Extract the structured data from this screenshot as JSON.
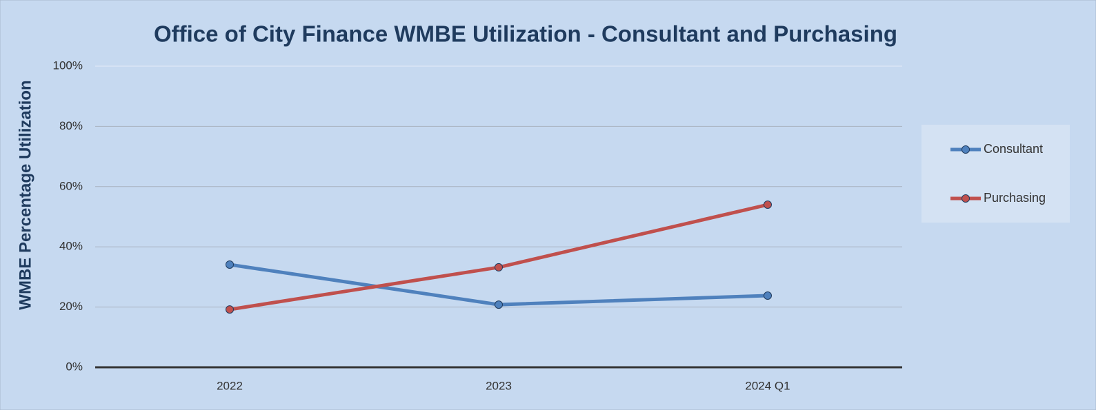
{
  "chart_data": {
    "type": "line",
    "title": "Office of City Finance WMBE Utilization - Consultant and Purchasing",
    "y_label": "WMBE Percentage Utilization",
    "categories": [
      "2022",
      "2023",
      "2024 Q1"
    ],
    "series": [
      {
        "name": "Consultant",
        "color": "#4f81bd",
        "values": [
          34.1,
          20.8,
          23.8
        ]
      },
      {
        "name": "Purchasing",
        "color": "#c0504d",
        "values": [
          19.2,
          33.2,
          54.0
        ]
      }
    ],
    "ylim": [
      0,
      100
    ],
    "yticks": [
      {
        "value": 0,
        "label": "0%"
      },
      {
        "value": 20,
        "label": "20%"
      },
      {
        "value": 40,
        "label": "40%"
      },
      {
        "value": 60,
        "label": "60%"
      },
      {
        "value": 80,
        "label": "80%"
      },
      {
        "value": 100,
        "label": "100%"
      }
    ],
    "grid": true,
    "legend": "right"
  }
}
